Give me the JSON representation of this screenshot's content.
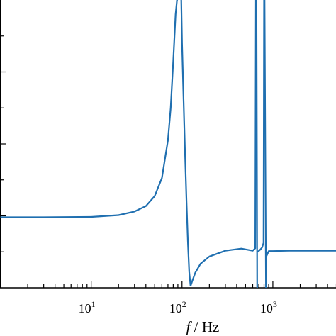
{
  "chart_data": {
    "type": "line",
    "xlabel_var": "f",
    "xlabel_sep": " / ",
    "xlabel_unit": "Hz",
    "x_scale": "log",
    "xlim": [
      1,
      5000
    ],
    "ylim": [
      0,
      8
    ],
    "grid": false,
    "tick_labels": [
      {
        "base": "10",
        "exp": "1",
        "value": 10
      },
      {
        "base": "10",
        "exp": "2",
        "value": 100
      },
      {
        "base": "10",
        "exp": "3",
        "value": 1000
      }
    ],
    "series": [
      {
        "color": "#1f6fb0",
        "segments": [
          {
            "x": [
              1,
              3,
              10,
              20,
              30,
              40,
              50,
              60,
              70,
              75,
              80,
              85,
              88,
              90
            ],
            "y": [
              1.96,
              1.96,
              1.97,
              2.02,
              2.12,
              2.27,
              2.55,
              3.05,
              4.1,
              5.0,
              6.3,
              7.6,
              8.0,
              8.0
            ]
          },
          {
            "x": [
              98,
              100,
              104,
              108,
              112,
              116,
              120,
              124
            ],
            "y": [
              8.0,
              6.8,
              5.2,
              3.7,
              2.4,
              1.3,
              0.45,
              0.05
            ]
          },
          {
            "x": [
              124,
              130,
              140,
              160,
              200,
              300,
              450,
              600,
              640,
              650
            ],
            "y": [
              0.05,
              0.2,
              0.42,
              0.67,
              0.87,
              1.03,
              1.09,
              1.03,
              1.1,
              8.0
            ]
          },
          {
            "x": [
              660,
              668,
              672
            ],
            "y": [
              8.0,
              3.0,
              0.0
            ]
          },
          {
            "x": [
              680,
              720,
              760,
              790,
              800
            ],
            "y": [
              1.0,
              1.05,
              1.12,
              1.25,
              8.0
            ]
          },
          {
            "x": [
              810,
              830,
              840
            ],
            "y": [
              8.0,
              2.5,
              0.0
            ]
          },
          {
            "x": [
              850,
              900,
              1000,
              1500,
              3000,
              5000
            ],
            "y": [
              0.88,
              1.02,
              1.02,
              1.03,
              1.03,
              1.03
            ]
          }
        ]
      }
    ]
  }
}
